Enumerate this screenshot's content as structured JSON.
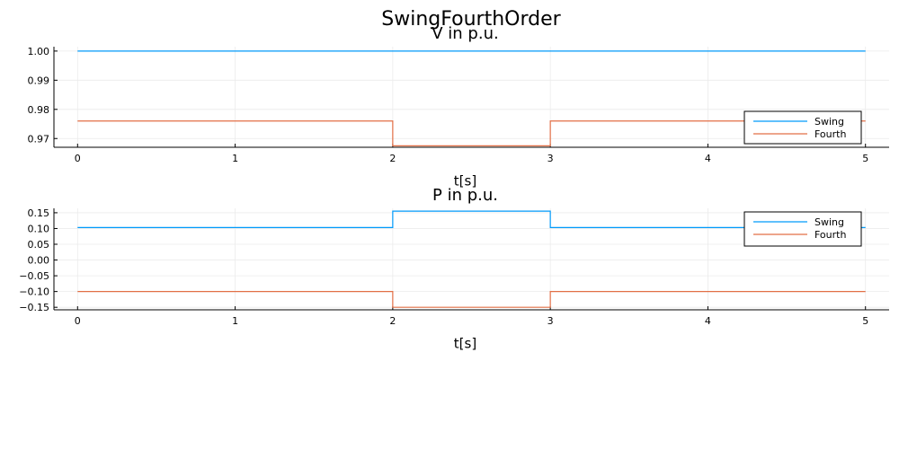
{
  "title": "SwingFourthOrder",
  "colors": {
    "swing": "#009AFA",
    "fourth": "#E26F46",
    "grid": "#EBEBEB",
    "axis": "#000000"
  },
  "chart_data": [
    {
      "type": "line",
      "title": "V in p.u.",
      "xlabel": "t[s]",
      "ylabel": "",
      "xlim": [
        -0.15,
        5.15
      ],
      "ylim": [
        0.967,
        1.0015
      ],
      "xticks": [
        0,
        1,
        2,
        3,
        4,
        5
      ],
      "xtick_labels": [
        "0",
        "1",
        "2",
        "3",
        "4",
        "5"
      ],
      "yticks": [
        0.97,
        0.98,
        0.99,
        1.0
      ],
      "ytick_labels": [
        "0.97",
        "0.98",
        "0.99",
        "1.00"
      ],
      "grid": true,
      "legend_position": "bottom-right",
      "series": [
        {
          "name": "Swing",
          "color": "#009AFA",
          "x": [
            0,
            5
          ],
          "y": [
            1.0,
            1.0
          ]
        },
        {
          "name": "Fourth",
          "color": "#E26F46",
          "x": [
            0,
            2,
            2,
            3,
            3,
            5
          ],
          "y": [
            0.976,
            0.976,
            0.9675,
            0.9675,
            0.976,
            0.976
          ]
        }
      ]
    },
    {
      "type": "line",
      "title": "P in p.u.",
      "xlabel": "t[s]",
      "ylabel": "",
      "xlim": [
        -0.15,
        5.15
      ],
      "ylim": [
        -0.158,
        0.164
      ],
      "xticks": [
        0,
        1,
        2,
        3,
        4,
        5
      ],
      "xtick_labels": [
        "0",
        "1",
        "2",
        "3",
        "4",
        "5"
      ],
      "yticks": [
        -0.15,
        -0.1,
        -0.05,
        0.0,
        0.05,
        0.1,
        0.15
      ],
      "ytick_labels": [
        "−0.15",
        "−0.10",
        "−0.05",
        "0.00",
        "0.05",
        "0.10",
        "0.15"
      ],
      "grid": true,
      "legend_position": "top-right",
      "series": [
        {
          "name": "Swing",
          "color": "#009AFA",
          "x": [
            0,
            2,
            2,
            3,
            3,
            5
          ],
          "y": [
            0.103,
            0.103,
            0.155,
            0.155,
            0.103,
            0.103
          ]
        },
        {
          "name": "Fourth",
          "color": "#E26F46",
          "x": [
            0,
            2,
            2,
            3,
            3,
            5
          ],
          "y": [
            -0.1,
            -0.1,
            -0.15,
            -0.15,
            -0.1,
            -0.1
          ]
        }
      ]
    }
  ]
}
